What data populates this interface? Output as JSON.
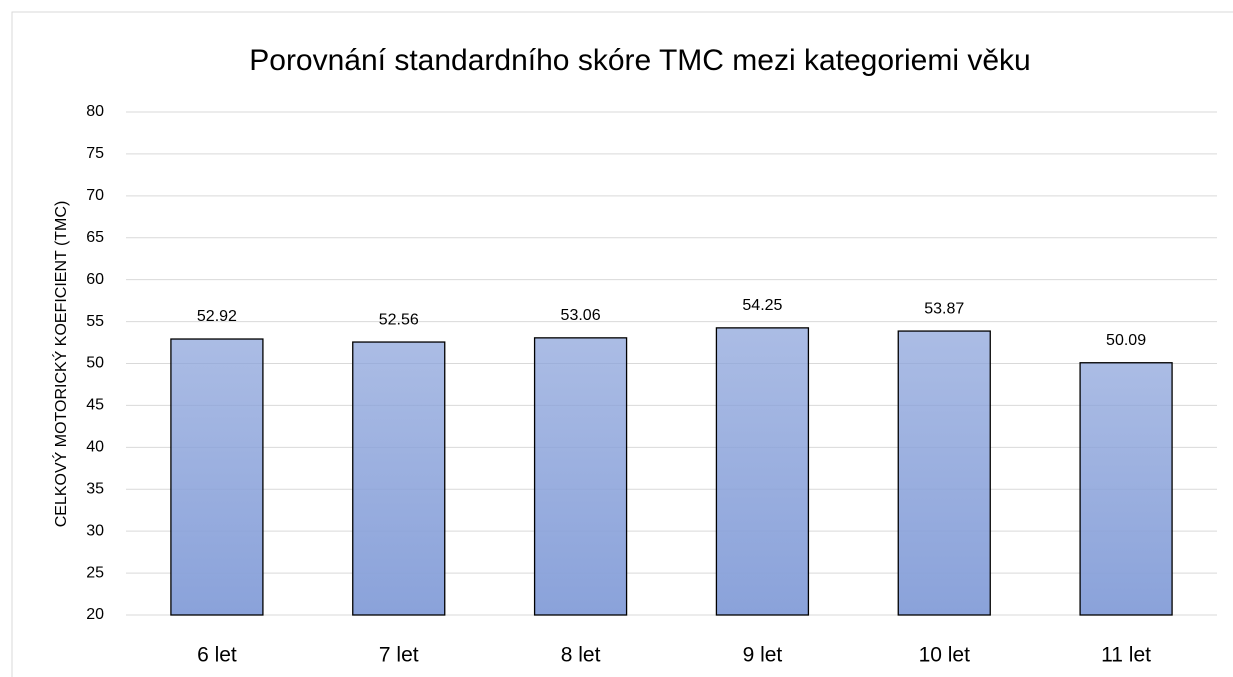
{
  "chart_data": {
    "type": "bar",
    "title": "Porovnání standardního skóre TMC mezi kategoriemi věku",
    "y_label": "CELKOVÝ MOTORICKÝ KOEFICIENT (TMC)",
    "categories": [
      "6 let",
      "7 let",
      "8 let",
      "9 let",
      "10 let",
      "11 let"
    ],
    "values": [
      52.92,
      52.56,
      53.06,
      54.25,
      53.87,
      50.09
    ],
    "color": "#8aa2da",
    "ylim": [
      20,
      80
    ],
    "yticks": [
      20,
      25,
      30,
      35,
      40,
      45,
      50,
      55,
      60,
      65,
      70,
      75,
      80
    ],
    "grid": true
  }
}
